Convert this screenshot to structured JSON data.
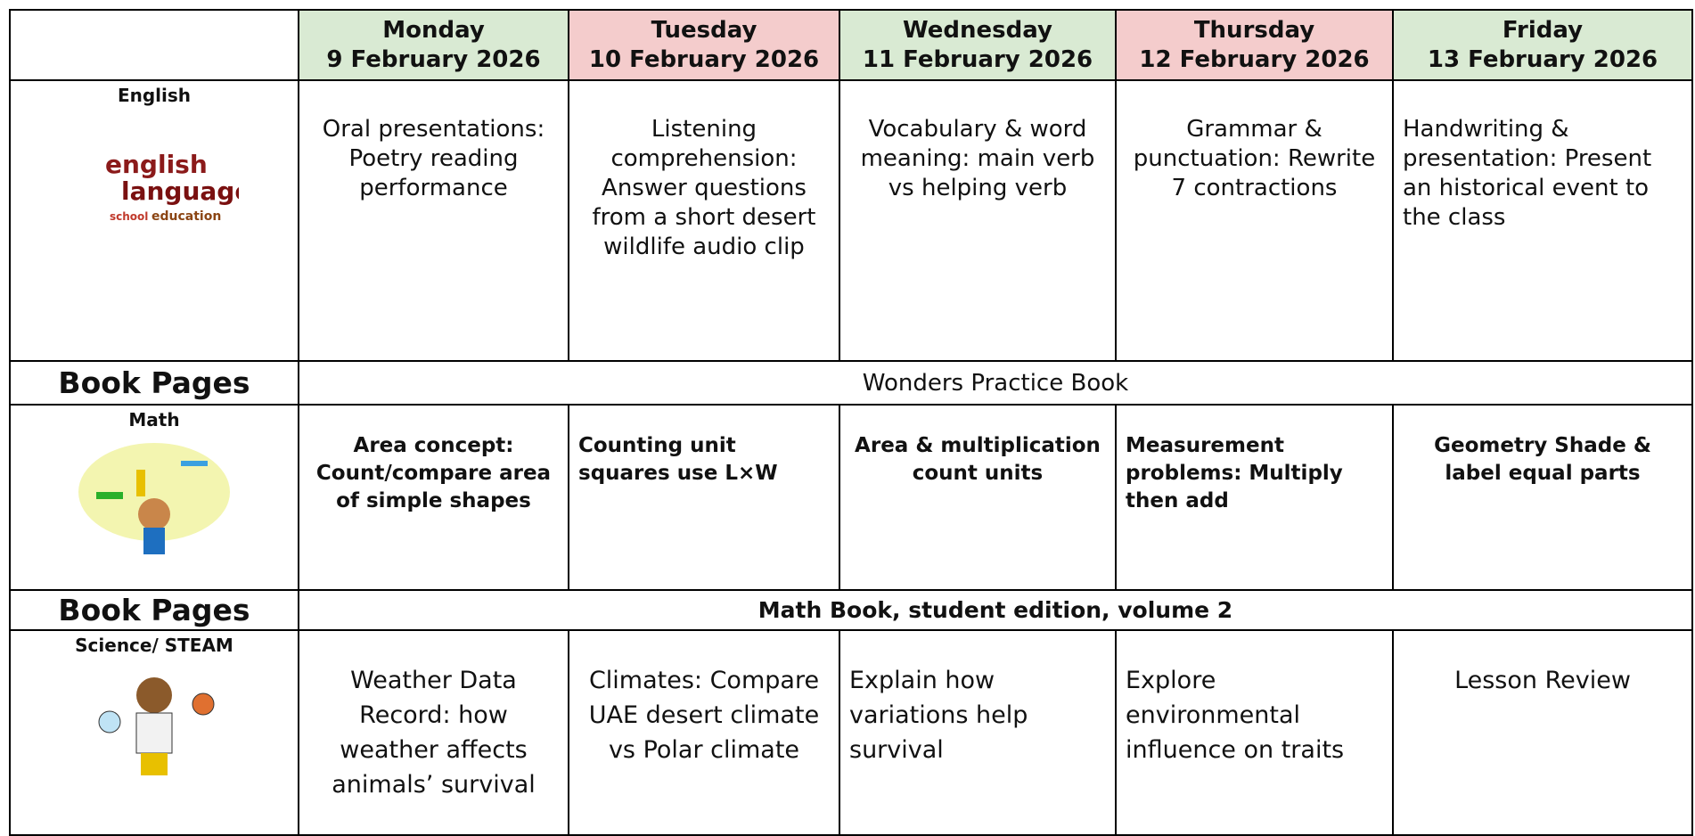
{
  "header": {
    "days": [
      {
        "day": "Monday",
        "date": "9 February 2026"
      },
      {
        "day": "Tuesday",
        "date": "10 February 2026"
      },
      {
        "day": "Wednesday",
        "date": "11 February 2026"
      },
      {
        "day": "Thursday",
        "date": "12 February 2026"
      },
      {
        "day": "Friday",
        "date": "13 February 2026"
      }
    ]
  },
  "english": {
    "label": "English",
    "image_words": [
      "english",
      "language",
      "school",
      "education"
    ],
    "lessons": [
      "Oral presentations: Poetry reading performance",
      "Listening comprehension: Answer questions from a short desert wildlife audio clip",
      "Vocabulary & word meaning: main verb vs helping verb",
      "Grammar & punctuation: Rewrite 7 contractions",
      "Handwriting & presentation:   Present an historical event to the class"
    ]
  },
  "english_book": {
    "label": "Book Pages",
    "text": "Wonders Practice Book"
  },
  "math": {
    "label": "Math",
    "lessons": [
      "Area concept: Count/compare area of simple shapes",
      "Counting unit squares use L×W",
      "Area & multiplication count units",
      "Measurement problems: Multiply then add",
      "Geometry Shade & label equal parts"
    ]
  },
  "math_book": {
    "label": "Book Pages",
    "text": "Math Book, student edition, volume 2"
  },
  "science": {
    "label": "Science/ STEAM",
    "lessons": [
      "Weather Data Record: how weather affects animals’ survival",
      "Climates: Compare UAE desert climate vs Polar climate",
      "Explain how variations help survival",
      "Explore environmental influence on traits",
      "Lesson Review"
    ]
  }
}
